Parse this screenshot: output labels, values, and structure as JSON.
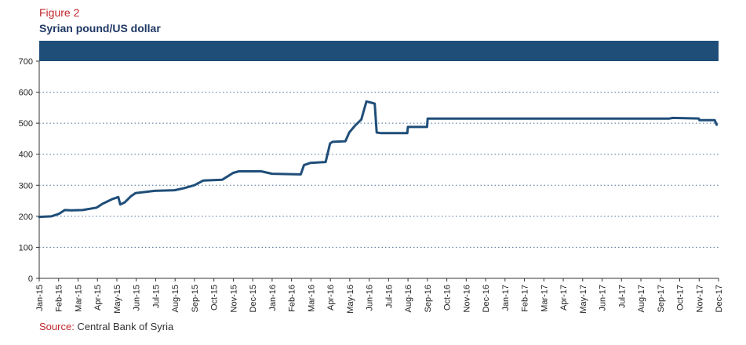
{
  "figure_label": "Figure 2",
  "chart_data": {
    "type": "line",
    "title": "Syrian pound/US dollar",
    "xlabel": "",
    "ylabel": "",
    "ylim": [
      0,
      700
    ],
    "yticks": [
      0,
      100,
      200,
      300,
      400,
      500,
      600,
      700
    ],
    "grid": "horizontal dotted",
    "x_tick_labels": [
      "Jan-15",
      "Feb-15",
      "Mar-15",
      "Apr-15",
      "May-15",
      "Jun-15",
      "Jul-15",
      "Aug-15",
      "Sep-15",
      "Oct-15",
      "Nov-15",
      "Dec-15",
      "Jan-16",
      "Feb-16",
      "Mar-16",
      "Apr-16",
      "May-16",
      "Jun-16",
      "Jul-16",
      "Aug-16",
      "Sep-16",
      "Oct-16",
      "Nov-16",
      "Dec-16",
      "Jan-17",
      "Feb-17",
      "Mar-17",
      "Apr-17",
      "May-17",
      "Jun-17",
      "Jul-17",
      "Aug-17",
      "Sep-17",
      "Oct-17",
      "Nov-17",
      "Dec-17"
    ],
    "series": [
      {
        "color": "#1f4e79",
        "points": [
          [
            "2015-01-01",
            198
          ],
          [
            "2015-01-20",
            200
          ],
          [
            "2015-02-01",
            208
          ],
          [
            "2015-02-10",
            220
          ],
          [
            "2015-02-20",
            219
          ],
          [
            "2015-03-10",
            220
          ],
          [
            "2015-04-01",
            228
          ],
          [
            "2015-04-10",
            240
          ],
          [
            "2015-04-25",
            255
          ],
          [
            "2015-05-05",
            262
          ],
          [
            "2015-05-08",
            238
          ],
          [
            "2015-05-15",
            245
          ],
          [
            "2015-05-25",
            265
          ],
          [
            "2015-06-01",
            275
          ],
          [
            "2015-07-01",
            282
          ],
          [
            "2015-08-01",
            284
          ],
          [
            "2015-08-15",
            290
          ],
          [
            "2015-09-01",
            300
          ],
          [
            "2015-09-15",
            315
          ],
          [
            "2015-10-15",
            318
          ],
          [
            "2015-11-01",
            340
          ],
          [
            "2015-11-10",
            345
          ],
          [
            "2015-12-15",
            345
          ],
          [
            "2016-01-01",
            337
          ],
          [
            "2016-02-15",
            335
          ],
          [
            "2016-02-20",
            365
          ],
          [
            "2016-03-01",
            372
          ],
          [
            "2016-03-25",
            375
          ],
          [
            "2016-04-01",
            435
          ],
          [
            "2016-04-05",
            440
          ],
          [
            "2016-04-25",
            442
          ],
          [
            "2016-05-01",
            470
          ],
          [
            "2016-05-10",
            492
          ],
          [
            "2016-05-20",
            512
          ],
          [
            "2016-05-28",
            570
          ],
          [
            "2016-06-05",
            566
          ],
          [
            "2016-06-10",
            563
          ],
          [
            "2016-06-13",
            470
          ],
          [
            "2016-06-20",
            468
          ],
          [
            "2016-07-31",
            468
          ],
          [
            "2016-08-01",
            488
          ],
          [
            "2016-08-31",
            488
          ],
          [
            "2016-09-01",
            515
          ],
          [
            "2017-06-30",
            515
          ],
          [
            "2017-09-15",
            515
          ],
          [
            "2017-09-20",
            517
          ],
          [
            "2017-10-31",
            515
          ],
          [
            "2017-11-01",
            510
          ],
          [
            "2017-11-25",
            510
          ],
          [
            "2017-11-28",
            495
          ]
        ]
      }
    ]
  },
  "source": {
    "label": "Source:",
    "text": " Central Bank of Syria"
  }
}
